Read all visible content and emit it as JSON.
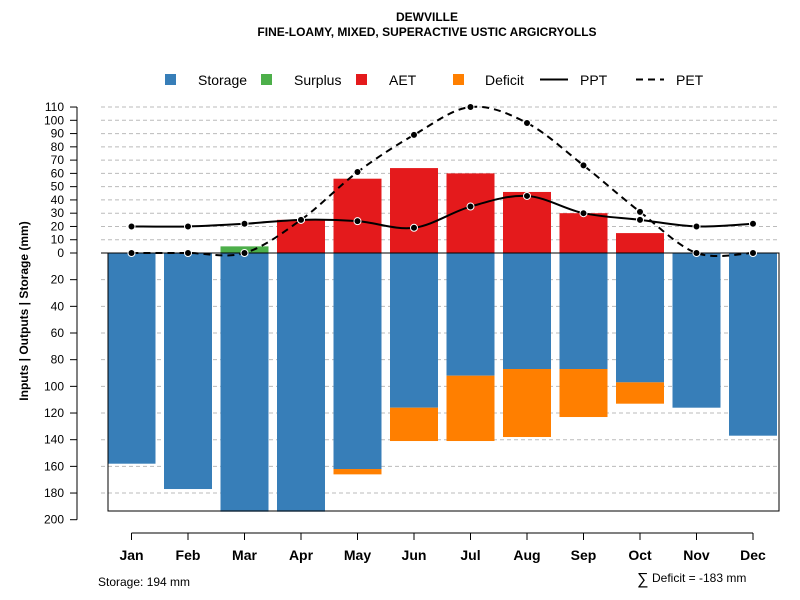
{
  "chart_data": {
    "type": "bar",
    "title": "DEWVILLE",
    "subtitle": "FINE-LOAMY, MIXED, SUPERACTIVE USTIC ARGICRYOLLS",
    "ylabel": "Inputs | Outputs | Storage     (mm)",
    "categories": [
      "Jan",
      "Feb",
      "Mar",
      "Apr",
      "May",
      "Jun",
      "Jul",
      "Aug",
      "Sep",
      "Oct",
      "Nov",
      "Dec"
    ],
    "y_ticks_positive": [
      "110",
      "100",
      "90",
      "80",
      "70",
      "60",
      "50",
      "40",
      "30",
      "20",
      "10",
      "0"
    ],
    "y_ticks_negative": [
      "20",
      "40",
      "60",
      "80",
      "100",
      "120",
      "140",
      "160",
      "180",
      "200"
    ],
    "y_range": [
      -200,
      110
    ],
    "legend": [
      {
        "name": "Storage",
        "kind": "box",
        "color": "#377EB8"
      },
      {
        "name": "Surplus",
        "kind": "box",
        "color": "#4DAF4A"
      },
      {
        "name": "AET",
        "kind": "box",
        "color": "#E41A1C"
      },
      {
        "name": "Deficit",
        "kind": "box",
        "color": "#FF7F00"
      },
      {
        "name": "PPT",
        "kind": "solid-line",
        "color": "#000000"
      },
      {
        "name": "PET",
        "kind": "dashed-line",
        "color": "#000000"
      }
    ],
    "series": {
      "storage": [
        158,
        177,
        194,
        194,
        162,
        116,
        92,
        87,
        87,
        97,
        116,
        137
      ],
      "deficit": [
        0,
        0,
        0,
        0,
        4,
        25,
        49,
        51,
        36,
        16,
        0,
        0
      ],
      "aet": [
        0,
        0,
        0,
        25,
        56,
        64,
        60,
        46,
        30,
        15,
        0,
        0
      ],
      "surplus": [
        0,
        0,
        5,
        0,
        0,
        0,
        0,
        0,
        0,
        0,
        0,
        0
      ],
      "ppt": [
        20,
        20,
        22,
        25,
        24,
        19,
        35,
        43,
        30,
        25,
        20,
        22
      ],
      "pet": [
        0,
        0,
        0,
        25,
        61,
        89,
        110,
        98,
        66,
        31,
        0,
        0
      ]
    },
    "colors": {
      "storage": "#377EB8",
      "surplus": "#4DAF4A",
      "aet": "#E41A1C",
      "deficit": "#FF7F00",
      "grid": "#BBBBBB"
    }
  },
  "footer": {
    "storage_text": "Storage: 194 mm",
    "deficit_symbol": "∑",
    "deficit_text": "Deficit = -183 mm"
  }
}
